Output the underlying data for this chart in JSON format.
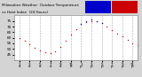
{
  "bg_color": "#d4d4d4",
  "plot_bg": "#ffffff",
  "legend_heat_color": "#0000cc",
  "legend_temp_color": "#cc0000",
  "x_hours": [
    0,
    1,
    2,
    3,
    4,
    5,
    6,
    7,
    8,
    9,
    10,
    11,
    12,
    13,
    14,
    15,
    16,
    17,
    18,
    19,
    20,
    21,
    22,
    23
  ],
  "temp_values": [
    60,
    57,
    54,
    51,
    49,
    47,
    46,
    48,
    52,
    57,
    63,
    68,
    72,
    74,
    75,
    75,
    73,
    70,
    67,
    64,
    61,
    58,
    55,
    53
  ],
  "heat_values": [
    null,
    null,
    null,
    null,
    null,
    null,
    null,
    null,
    null,
    null,
    null,
    null,
    72,
    75,
    76,
    75,
    73,
    null,
    null,
    null,
    null,
    null,
    null,
    null
  ],
  "ylim": [
    40,
    80
  ],
  "ytick_values": [
    45,
    50,
    55,
    60,
    65,
    70,
    75
  ],
  "grid_x_positions": [
    0,
    2,
    4,
    6,
    8,
    10,
    12,
    14,
    16,
    18,
    20,
    22
  ],
  "xtick_positions": [
    0,
    2,
    4,
    6,
    8,
    10,
    12,
    14,
    16,
    18,
    20,
    22
  ],
  "xtick_row1": [
    "1",
    "3",
    "5",
    "7",
    "9",
    "11",
    "1",
    "3",
    "5",
    "7",
    "9",
    "11"
  ],
  "xtick_row2": [
    "a",
    "a",
    "a",
    "a",
    "a",
    "a",
    "p",
    "p",
    "p",
    "p",
    "p",
    "p"
  ],
  "temp_color": "#dd0000",
  "heat_color": "#0000dd",
  "dot_size": 1.0,
  "title_text": "Milwaukee Weather  Outdoor Temperature",
  "title_text2": "vs Heat Index  (24 Hours)"
}
